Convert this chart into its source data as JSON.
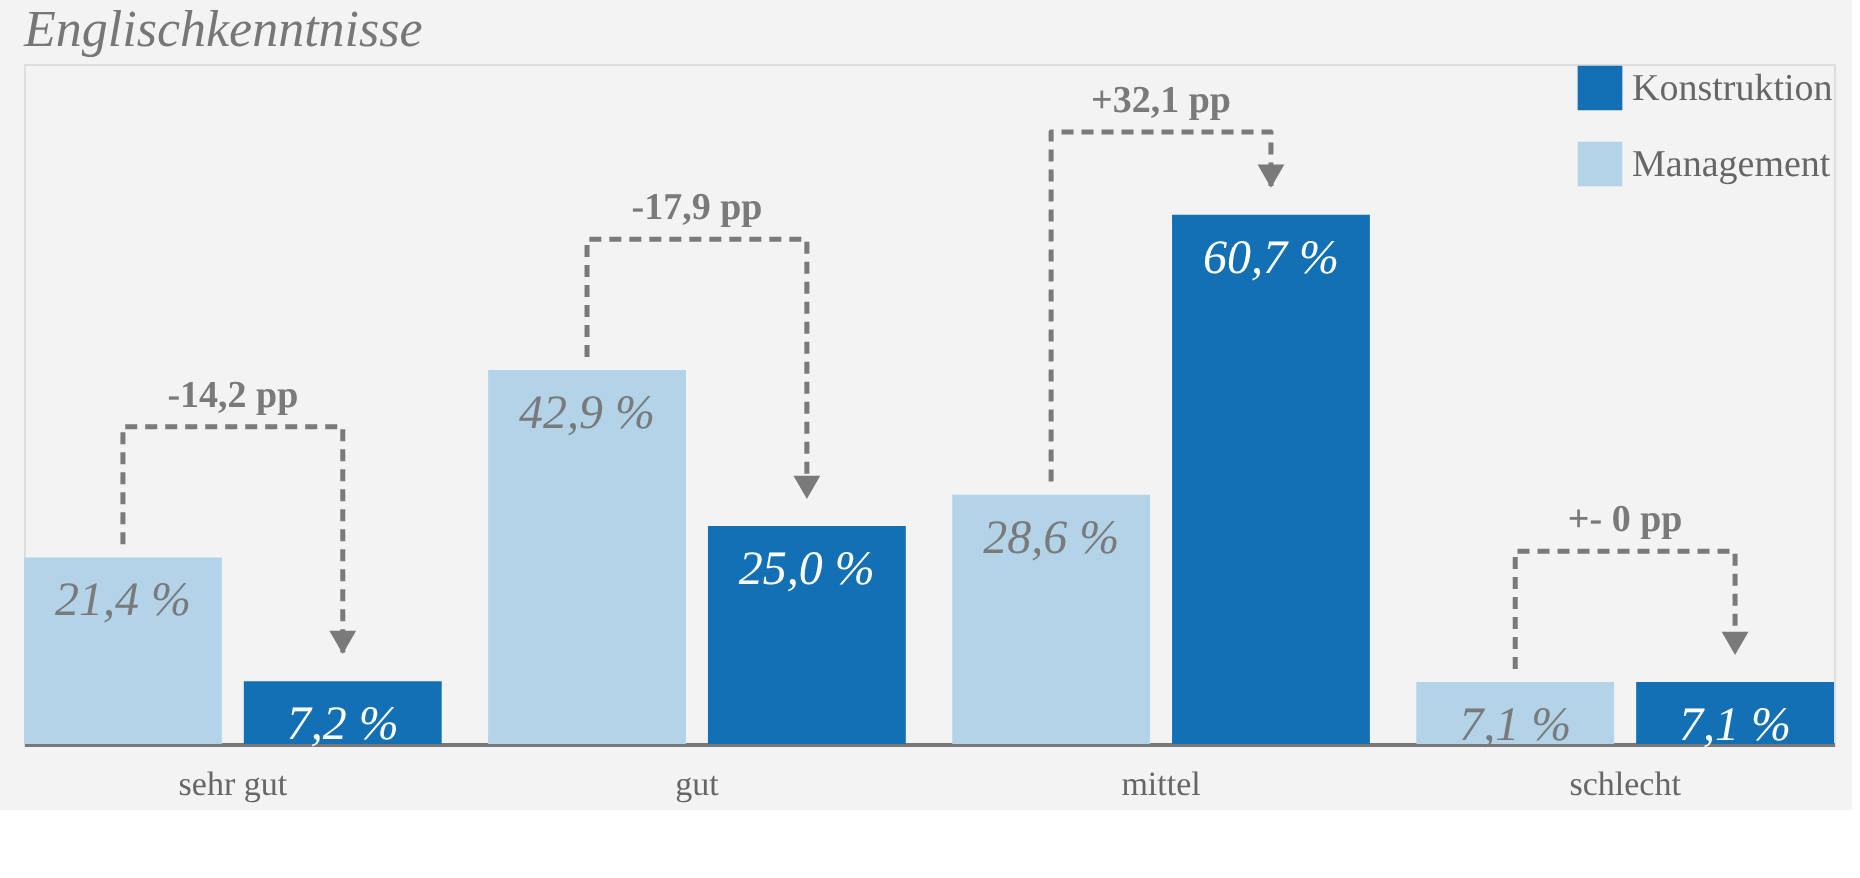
{
  "chart_data": {
    "type": "bar",
    "title": "Englischkenntnisse",
    "categories": [
      "sehr gut",
      "gut",
      "mittel",
      "schlecht"
    ],
    "series": [
      {
        "name": "Management",
        "color": "#b3d3e8",
        "values": [
          21.4,
          42.9,
          28.6,
          7.1
        ],
        "value_labels": [
          "21,4 %",
          "42,9 %",
          "28,6 %",
          "7,1 %"
        ]
      },
      {
        "name": "Konstruktion",
        "color": "#1470b4",
        "values": [
          7.2,
          25.0,
          60.7,
          7.1
        ],
        "value_labels": [
          "7,2 %",
          "25,0 %",
          "60,7 %",
          "7,1 %"
        ]
      }
    ],
    "ylim": [
      0,
      78
    ],
    "annotations": [
      "-14,2 pp",
      "-17,9 pp",
      "+32,1 pp",
      "+- 0 pp"
    ],
    "legend": "top right"
  }
}
